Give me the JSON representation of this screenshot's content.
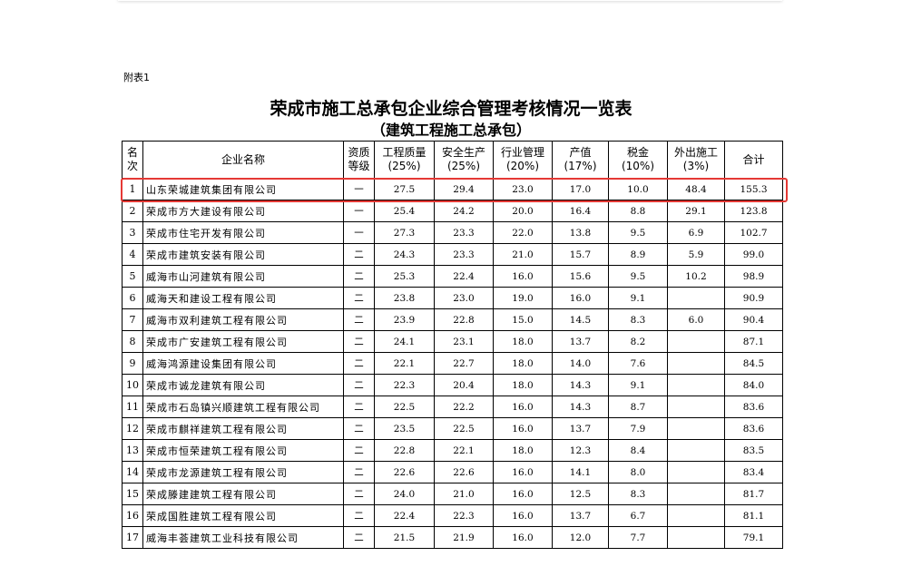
{
  "annex_label": "附表1",
  "title": "荣成市施工总承包企业综合管理考核情况一览表",
  "subtitle": "（建筑工程施工总承包）",
  "highlight_color": "#e53935",
  "table": {
    "headers": [
      {
        "line1": "名",
        "line2": "次"
      },
      {
        "line1": "企业名称",
        "line2": ""
      },
      {
        "line1": "资质",
        "line2": "等级"
      },
      {
        "line1": "工程质量",
        "line2": "(25%)"
      },
      {
        "line1": "安全生产",
        "line2": "(25%)"
      },
      {
        "line1": "行业管理",
        "line2": "(20%)"
      },
      {
        "line1": "产值",
        "line2": "(17%)"
      },
      {
        "line1": "税金",
        "line2": "(10%)"
      },
      {
        "line1": "外出施工",
        "line2": "(3%)"
      },
      {
        "line1": "合计",
        "line2": ""
      }
    ],
    "rows": [
      [
        "1",
        "山东荣城建筑集团有限公司",
        "一",
        "27.5",
        "29.4",
        "23.0",
        "17.0",
        "10.0",
        "48.4",
        "155.3"
      ],
      [
        "2",
        "荣成市方大建设有限公司",
        "一",
        "25.4",
        "24.2",
        "20.0",
        "16.4",
        "8.8",
        "29.1",
        "123.8"
      ],
      [
        "3",
        "荣成市住宅开发有限公司",
        "一",
        "27.3",
        "23.3",
        "22.0",
        "13.8",
        "9.5",
        "6.9",
        "102.7"
      ],
      [
        "4",
        "荣成市建筑安装有限公司",
        "二",
        "24.3",
        "23.3",
        "21.0",
        "15.7",
        "8.9",
        "5.9",
        "99.0"
      ],
      [
        "5",
        "威海市山河建筑有限公司",
        "二",
        "25.3",
        "22.4",
        "16.0",
        "15.6",
        "9.5",
        "10.2",
        "98.9"
      ],
      [
        "6",
        "威海天和建设工程有限公司",
        "二",
        "23.8",
        "23.0",
        "19.0",
        "16.0",
        "9.1",
        "",
        "90.9"
      ],
      [
        "7",
        "威海市双利建筑工程有限公司",
        "二",
        "23.9",
        "22.8",
        "15.0",
        "14.5",
        "8.3",
        "6.0",
        "90.4"
      ],
      [
        "8",
        "荣成市广安建筑工程有限公司",
        "二",
        "24.1",
        "23.1",
        "18.0",
        "13.7",
        "8.2",
        "",
        "87.1"
      ],
      [
        "9",
        "威海鸿源建设集团有限公司",
        "二",
        "22.1",
        "22.7",
        "18.0",
        "14.0",
        "7.6",
        "",
        "84.5"
      ],
      [
        "10",
        "荣成市诚龙建筑有限公司",
        "二",
        "22.3",
        "20.4",
        "18.0",
        "14.3",
        "9.1",
        "",
        "84.0"
      ],
      [
        "11",
        "荣成市石岛镇兴顺建筑工程有限公司",
        "二",
        "22.5",
        "22.2",
        "16.0",
        "14.3",
        "8.7",
        "",
        "83.6"
      ],
      [
        "12",
        "荣成市麒祥建筑工程有限公司",
        "二",
        "23.5",
        "22.5",
        "16.0",
        "13.7",
        "7.9",
        "",
        "83.6"
      ],
      [
        "13",
        "荣成市恒荣建筑工程有限公司",
        "二",
        "22.8",
        "22.1",
        "18.0",
        "12.3",
        "8.4",
        "",
        "83.5"
      ],
      [
        "14",
        "荣成市龙源建筑工程有限公司",
        "二",
        "22.6",
        "22.6",
        "16.0",
        "14.1",
        "8.0",
        "",
        "83.4"
      ],
      [
        "15",
        "荣成滕建建筑工程有限公司",
        "二",
        "24.0",
        "21.0",
        "16.0",
        "12.5",
        "8.3",
        "",
        "81.7"
      ],
      [
        "16",
        "荣成国胜建筑工程有限公司",
        "二",
        "22.4",
        "22.3",
        "16.0",
        "13.7",
        "6.7",
        "",
        "81.1"
      ],
      [
        "17",
        "威海丰荟建筑工业科技有限公司",
        "二",
        "21.5",
        "21.9",
        "16.0",
        "12.0",
        "7.7",
        "",
        "79.1"
      ]
    ]
  }
}
